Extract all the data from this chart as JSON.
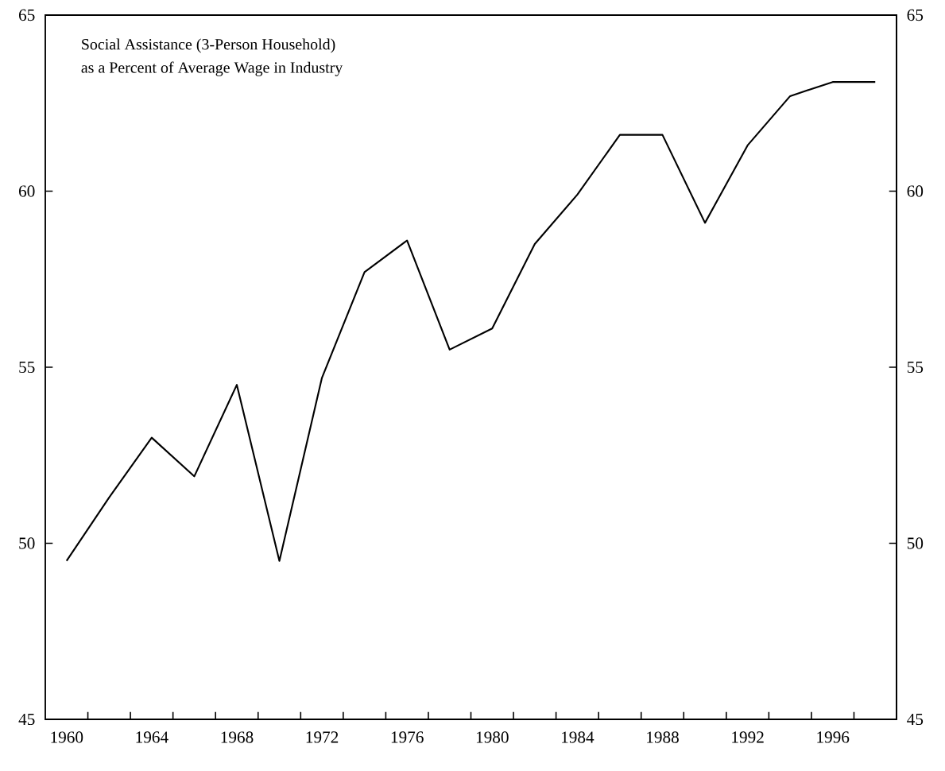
{
  "chart_data": {
    "type": "line",
    "title": "Social Assistance (3-Person Household)",
    "subtitle": "as a Percent of Average Wage in Industry",
    "x": [
      1960,
      1962,
      1964,
      1966,
      1968,
      1970,
      1972,
      1974,
      1976,
      1978,
      1980,
      1982,
      1984,
      1986,
      1988,
      1990,
      1992,
      1994,
      1996,
      1998
    ],
    "series": [
      {
        "color": "#000000",
        "values": [
          49.5,
          51.3,
          53.0,
          51.9,
          54.5,
          49.5,
          54.7,
          57.7,
          58.6,
          55.5,
          56.1,
          58.5,
          59.9,
          61.6,
          61.6,
          59.1,
          61.3,
          62.7,
          63.1,
          63.1
        ]
      }
    ],
    "xlim": [
      1959,
      1999
    ],
    "xticks": [
      1960,
      1964,
      1968,
      1972,
      1976,
      1980,
      1984,
      1988,
      1992,
      1996,
      {
        "value": 1961,
        "label": null
      },
      {
        "value": 1963,
        "label": null
      },
      {
        "value": 1965,
        "label": null
      },
      {
        "value": 1967,
        "label": null
      },
      {
        "value": 1969,
        "label": null
      },
      {
        "value": 1971,
        "label": null
      },
      {
        "value": 1973,
        "label": null
      },
      {
        "value": 1975,
        "label": null
      },
      {
        "value": 1977,
        "label": null
      },
      {
        "value": 1979,
        "label": null
      },
      {
        "value": 1981,
        "label": null
      },
      {
        "value": 1983,
        "label": null
      },
      {
        "value": 1985,
        "label": null
      },
      {
        "value": 1987,
        "label": null
      },
      {
        "value": 1989,
        "label": null
      },
      {
        "value": 1991,
        "label": null
      },
      {
        "value": 1993,
        "label": null
      },
      {
        "value": 1995,
        "label": null
      },
      {
        "value": 1997,
        "label": null
      }
    ],
    "ylim": [
      45,
      65
    ],
    "yticks": [
      45,
      50,
      55,
      60,
      65
    ],
    "y2lim": [
      45,
      65
    ],
    "y2ticks": [
      45,
      50,
      55,
      60,
      65
    ],
    "line_style": "solid"
  }
}
